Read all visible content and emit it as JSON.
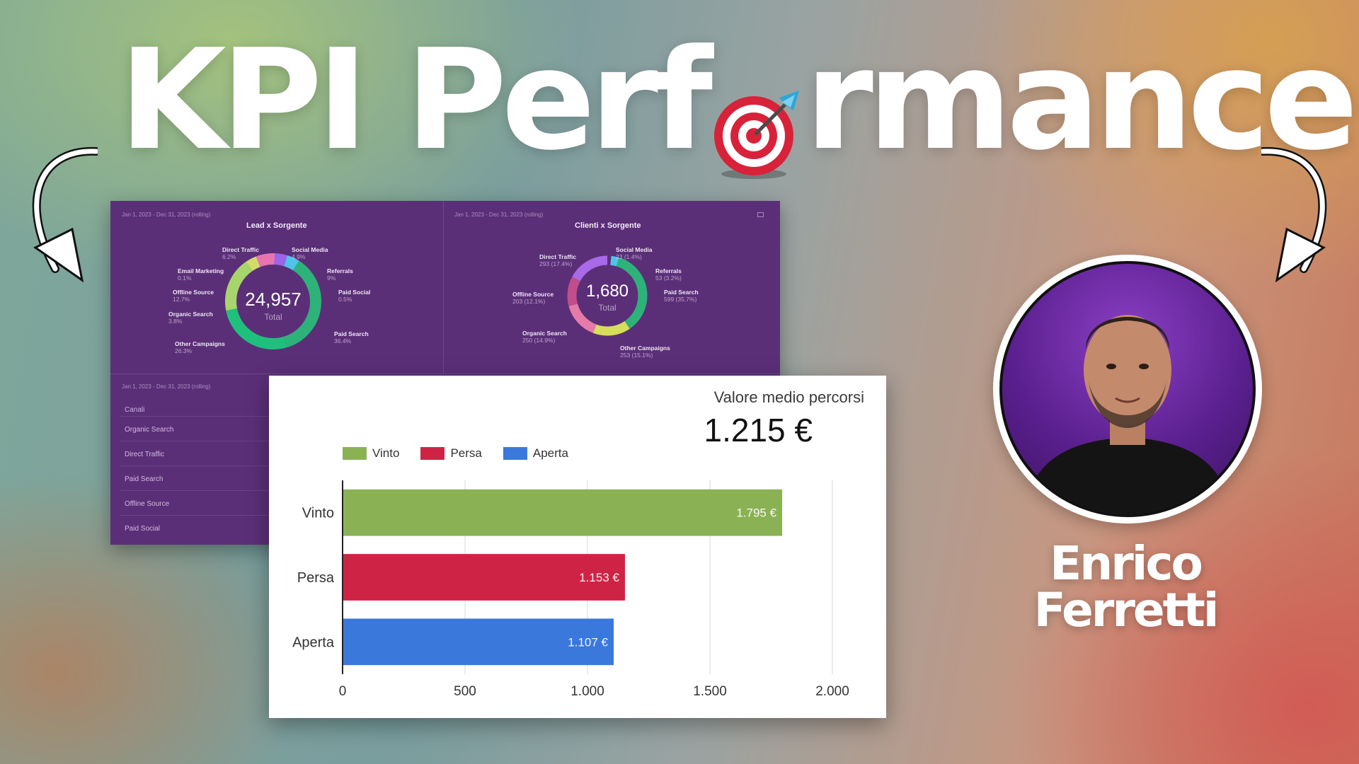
{
  "title": {
    "before": "KPI Perf",
    "after": "rmance",
    "icon": "dartboard-target-icon"
  },
  "presenter": {
    "first_name": "Enrico",
    "last_name": "Ferretti"
  },
  "dashboard": {
    "left_panel": {
      "date": "Jan 1, 2023 - Dec 31, 2023 (rolling)",
      "title": "Lead x Sorgente",
      "total": "24,957",
      "total_label": "Total",
      "labels": [
        {
          "name": "Direct Traffic",
          "pct": "6.2%"
        },
        {
          "name": "Social Media",
          "pct": "4.9%"
        },
        {
          "name": "Email Marketing",
          "pct": "0.1%"
        },
        {
          "name": "Referrals",
          "pct": "9%"
        },
        {
          "name": "Offline Source",
          "pct": "12.7%"
        },
        {
          "name": "Paid Social",
          "pct": "0.5%"
        },
        {
          "name": "Organic Search",
          "pct": "3.8%"
        },
        {
          "name": "Paid Search",
          "pct": "36.4%"
        },
        {
          "name": "Other Campaigns",
          "pct": "26.3%"
        }
      ]
    },
    "right_panel": {
      "date": "Jan 1, 2023 - Dec 31, 2023 (rolling)",
      "title": "Clienti x Sorgente",
      "total": "1,680",
      "total_label": "Total",
      "labels": [
        {
          "name": "Direct Traffic",
          "pct": "293 (17.4%)"
        },
        {
          "name": "Social Media",
          "pct": "23 (1.4%)"
        },
        {
          "name": "Referrals",
          "pct": "53 (3.2%)"
        },
        {
          "name": "Offline Source",
          "pct": "203 (12.1%)"
        },
        {
          "name": "Paid Search",
          "pct": "599 (35.7%)"
        },
        {
          "name": "Organic Search",
          "pct": "250 (14.9%)"
        },
        {
          "name": "Other Campaigns",
          "pct": "253 (15.1%)"
        }
      ]
    },
    "bottom_panel": {
      "date": "Jan 1, 2023 - Dec 31, 2023 (rolling)",
      "header": "Canali",
      "rows": [
        "Organic Search",
        "Direct Traffic",
        "Paid Search",
        "Offline Source",
        "Paid Social"
      ]
    }
  },
  "kpi": {
    "label": "Valore medio percorsi",
    "value": "1.215 €"
  },
  "colors": {
    "vinto": "#8ab255",
    "persa": "#cf2346",
    "aperta": "#3a78dc",
    "dashboard_bg": "#5b2f78"
  },
  "chart_data": {
    "type": "bar",
    "orientation": "horizontal",
    "categories": [
      "Vinto",
      "Persa",
      "Aperta"
    ],
    "values": [
      1795,
      1153,
      1107
    ],
    "value_labels": [
      "1.795 €",
      "1.153 €",
      "1.107 €"
    ],
    "legend": [
      "Vinto",
      "Persa",
      "Aperta"
    ],
    "legend_position": "top-left",
    "xlim": [
      0,
      2000
    ],
    "xticks": [
      0,
      500,
      1000,
      1500,
      2000
    ],
    "xtick_labels": [
      "0",
      "500",
      "1.000",
      "1.500",
      "2.000"
    ],
    "grid": true
  }
}
